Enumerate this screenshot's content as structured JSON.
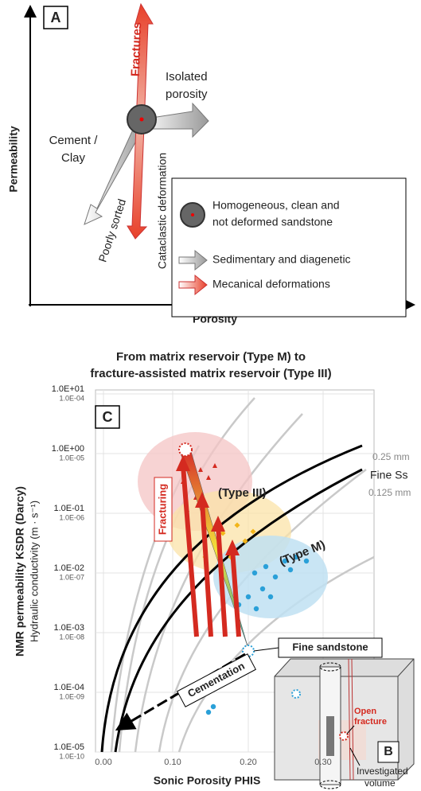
{
  "panel_a": {
    "label": "A",
    "y_axis": "Permeability",
    "x_axis": "Porosity",
    "fractures": "Fractures",
    "isolated_porosity": [
      "Isolated",
      "porosity"
    ],
    "cement_clay": [
      "Cement /",
      "Clay"
    ],
    "poorly_sorted": "Poorly sorted",
    "cataclastic": "Cataclastic deformation",
    "legend": {
      "homogeneous": [
        "Homogeneous, clean and",
        "not deformed sandstone"
      ],
      "sedimentary": "Sedimentary and diagenetic",
      "mechanical": "Mecanical deformations"
    }
  },
  "panel_c": {
    "title": [
      "From matrix reservoir (Type M) to",
      "fracture-assisted matrix reservoir (Type III)"
    ],
    "label": "C",
    "y_axis": "NMR permeability KSDR (Darcy)",
    "y2_axis": "Hydraulic conductivity (m · s⁻¹)",
    "x_axis": "Sonic Porosity PHIS",
    "x_ticks": [
      "0.00",
      "0.10",
      "0.20",
      "0.30"
    ],
    "y_ticks": [
      [
        "1.0E+01",
        "1.0E-04"
      ],
      [
        "1.0E+00",
        "1.0E-05"
      ],
      [
        "1.0E-01",
        "1.0E-06"
      ],
      [
        "1.0E-02",
        "1.0E-07"
      ],
      [
        "1.0E-03",
        "1.0E-08"
      ],
      [
        "1.0E-04",
        "1.0E-09"
      ],
      [
        "1.0E-05",
        "1.0E-10"
      ]
    ],
    "type_iii": "(Type III)",
    "type_m": "(Type M)",
    "fracturing": "Fracturing",
    "cementation": "Cementation",
    "fine_sandstone": "Fine sandstone",
    "grain_025": "0.25 mm",
    "fine_ss": "Fine Ss",
    "grain_0125": "0.125 mm"
  },
  "panel_b": {
    "label": "B",
    "open_fracture": [
      "Open",
      "fracture"
    ],
    "investigated_volume": [
      "Investigated",
      "volume"
    ]
  }
}
